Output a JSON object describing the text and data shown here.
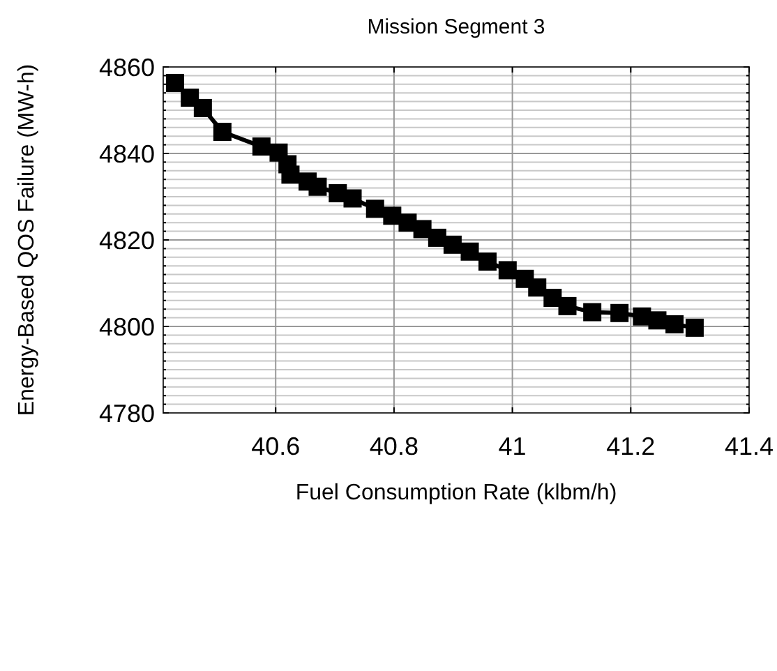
{
  "chart_data": {
    "type": "line",
    "title": "Mission Segment 3",
    "xlabel": "Fuel Consumption Rate (klbm/h)",
    "ylabel": "Energy-Based QOS Failure (MW-h)",
    "xlim": [
      40.41,
      41.4
    ],
    "xticks": [
      40.6,
      40.8,
      41,
      41.2,
      41.4
    ],
    "ylim": [
      4780,
      4860
    ],
    "yticks": [
      4780,
      {
        "value": 4782,
        "label": null
      },
      {
        "value": 4784,
        "label": null
      },
      {
        "value": 4786,
        "label": null
      },
      {
        "value": 4788,
        "label": null
      },
      {
        "value": 4790,
        "label": null
      },
      {
        "value": 4792,
        "label": null
      },
      {
        "value": 4794,
        "label": null
      },
      {
        "value": 4796,
        "label": null
      },
      {
        "value": 4798,
        "label": null
      },
      4800,
      {
        "value": 4802,
        "label": null
      },
      {
        "value": 4804,
        "label": null
      },
      {
        "value": 4806,
        "label": null
      },
      {
        "value": 4808,
        "label": null
      },
      {
        "value": 4810,
        "label": null
      },
      {
        "value": 4812,
        "label": null
      },
      {
        "value": 4814,
        "label": null
      },
      {
        "value": 4816,
        "label": null
      },
      {
        "value": 4818,
        "label": null
      },
      4820,
      {
        "value": 4822,
        "label": null
      },
      {
        "value": 4824,
        "label": null
      },
      {
        "value": 4826,
        "label": null
      },
      {
        "value": 4828,
        "label": null
      },
      {
        "value": 4830,
        "label": null
      },
      {
        "value": 4832,
        "label": null
      },
      {
        "value": 4834,
        "label": null
      },
      {
        "value": 4836,
        "label": null
      },
      {
        "value": 4838,
        "label": null
      },
      4840,
      {
        "value": 4842,
        "label": null
      },
      {
        "value": 4844,
        "label": null
      },
      {
        "value": 4846,
        "label": null
      },
      {
        "value": 4848,
        "label": null
      },
      {
        "value": 4850,
        "label": null
      },
      {
        "value": 4852,
        "label": null
      },
      {
        "value": 4854,
        "label": null
      },
      {
        "value": 4856,
        "label": null
      },
      {
        "value": 4858,
        "label": null
      },
      4860
    ],
    "grid": true,
    "marker": "square",
    "line_style": "solid",
    "series": [
      {
        "color": "#000000",
        "x": [
          40.43,
          40.455,
          40.477,
          40.51,
          40.576,
          40.605,
          40.62,
          40.625,
          40.654,
          40.671,
          40.705,
          40.73,
          40.768,
          40.797,
          40.823,
          40.848,
          40.873,
          40.899,
          40.928,
          40.958,
          40.992,
          41.021,
          41.042,
          41.068,
          41.093,
          41.135,
          41.181,
          41.219,
          41.245,
          41.274,
          41.308
        ],
        "values": [
          4856.3,
          4852.9,
          4850.5,
          4845.0,
          4841.6,
          4840.2,
          4837.5,
          4835.1,
          4833.5,
          4832.3,
          4830.8,
          4829.6,
          4827.2,
          4825.6,
          4824.0,
          4822.5,
          4820.5,
          4818.9,
          4817.3,
          4815.0,
          4813.0,
          4811.0,
          4809.0,
          4806.6,
          4804.7,
          4803.3,
          4803.1,
          4802.3,
          4801.4,
          4800.5,
          4799.7
        ]
      }
    ]
  }
}
